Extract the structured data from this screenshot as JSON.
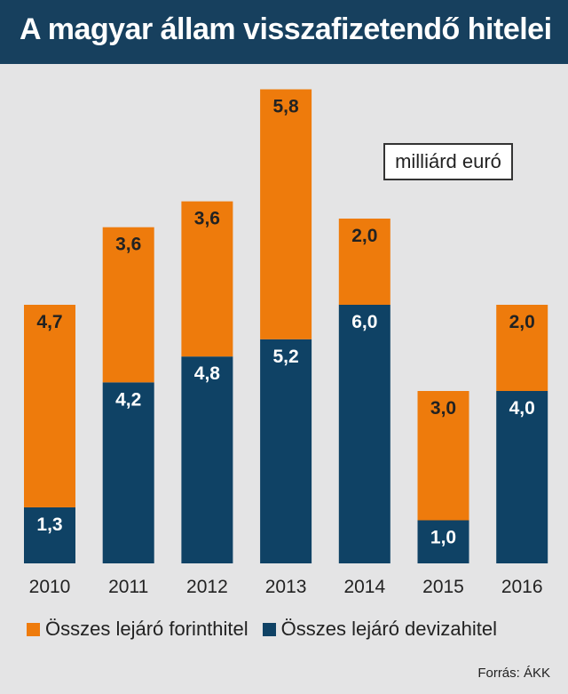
{
  "title": "A magyar állam visszafizetendő hitelei",
  "unit_label": "milliárd euró",
  "source": "Forrás: ÁKK",
  "colors": {
    "header_bg": "#17405e",
    "forint": "#ee7b0c",
    "deviza": "#0f4265",
    "background": "#e4e4e5"
  },
  "legend": {
    "forint_label": "Összes lejáró forinthitel",
    "deviza_label": "Összes lejáró devizahitel"
  },
  "chart_data": {
    "type": "bar",
    "stacked": true,
    "categories": [
      "2010",
      "2011",
      "2012",
      "2013",
      "2014",
      "2015",
      "2016"
    ],
    "series": [
      {
        "name": "Összes lejáró devizahitel",
        "values": [
          1.3,
          4.2,
          4.8,
          5.2,
          6.0,
          1.0,
          4.0
        ],
        "labels": [
          "1,3",
          "4,2",
          "4,8",
          "5,2",
          "6,0",
          "1,0",
          "4,0"
        ],
        "color": "#0f4265",
        "label_color": "#ffffff"
      },
      {
        "name": "Összes lejáró forinthitel",
        "values": [
          4.7,
          3.6,
          3.6,
          5.8,
          2.0,
          3.0,
          2.0
        ],
        "labels": [
          "4,7",
          "3,6",
          "3,6",
          "5,8",
          "2,0",
          "3,0",
          "2,0"
        ],
        "color": "#ee7b0c",
        "label_color": "#222222"
      }
    ],
    "ylim": [
      0,
      11
    ],
    "grid": false,
    "legend_position": "bottom-left"
  }
}
